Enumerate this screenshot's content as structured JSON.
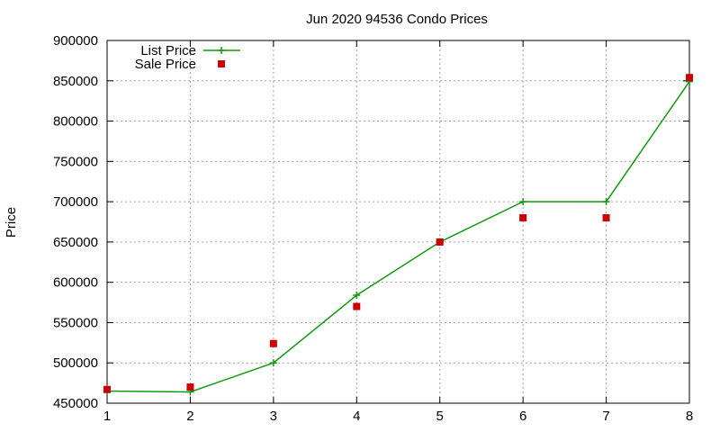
{
  "chart_data": {
    "type": "line",
    "title": "Jun 2020 94536 Condo Prices",
    "xlabel": "",
    "ylabel": "Price",
    "xlim": [
      1,
      8
    ],
    "ylim": [
      450000,
      900000
    ],
    "x_ticks": [
      "1",
      "2",
      "3",
      "4",
      "5",
      "6",
      "7",
      "8"
    ],
    "y_ticks": [
      "450000",
      "500000",
      "550000",
      "600000",
      "650000",
      "700000",
      "750000",
      "800000",
      "850000",
      "900000"
    ],
    "grid": true,
    "legend_position": "top-left",
    "series": [
      {
        "name": "List Price",
        "style": "lines+points",
        "color": "#119911",
        "x": [
          1,
          2,
          3,
          4,
          5,
          6,
          7,
          8
        ],
        "y": [
          465000,
          464000,
          500000,
          584000,
          650000,
          700000,
          700000,
          849000
        ]
      },
      {
        "name": "Sale Price",
        "style": "points",
        "color": "#cc0000",
        "x": [
          1,
          2,
          3,
          4,
          5,
          6,
          7,
          8
        ],
        "y": [
          467000,
          470000,
          524000,
          570000,
          650000,
          680000,
          680000,
          854000
        ]
      }
    ]
  }
}
